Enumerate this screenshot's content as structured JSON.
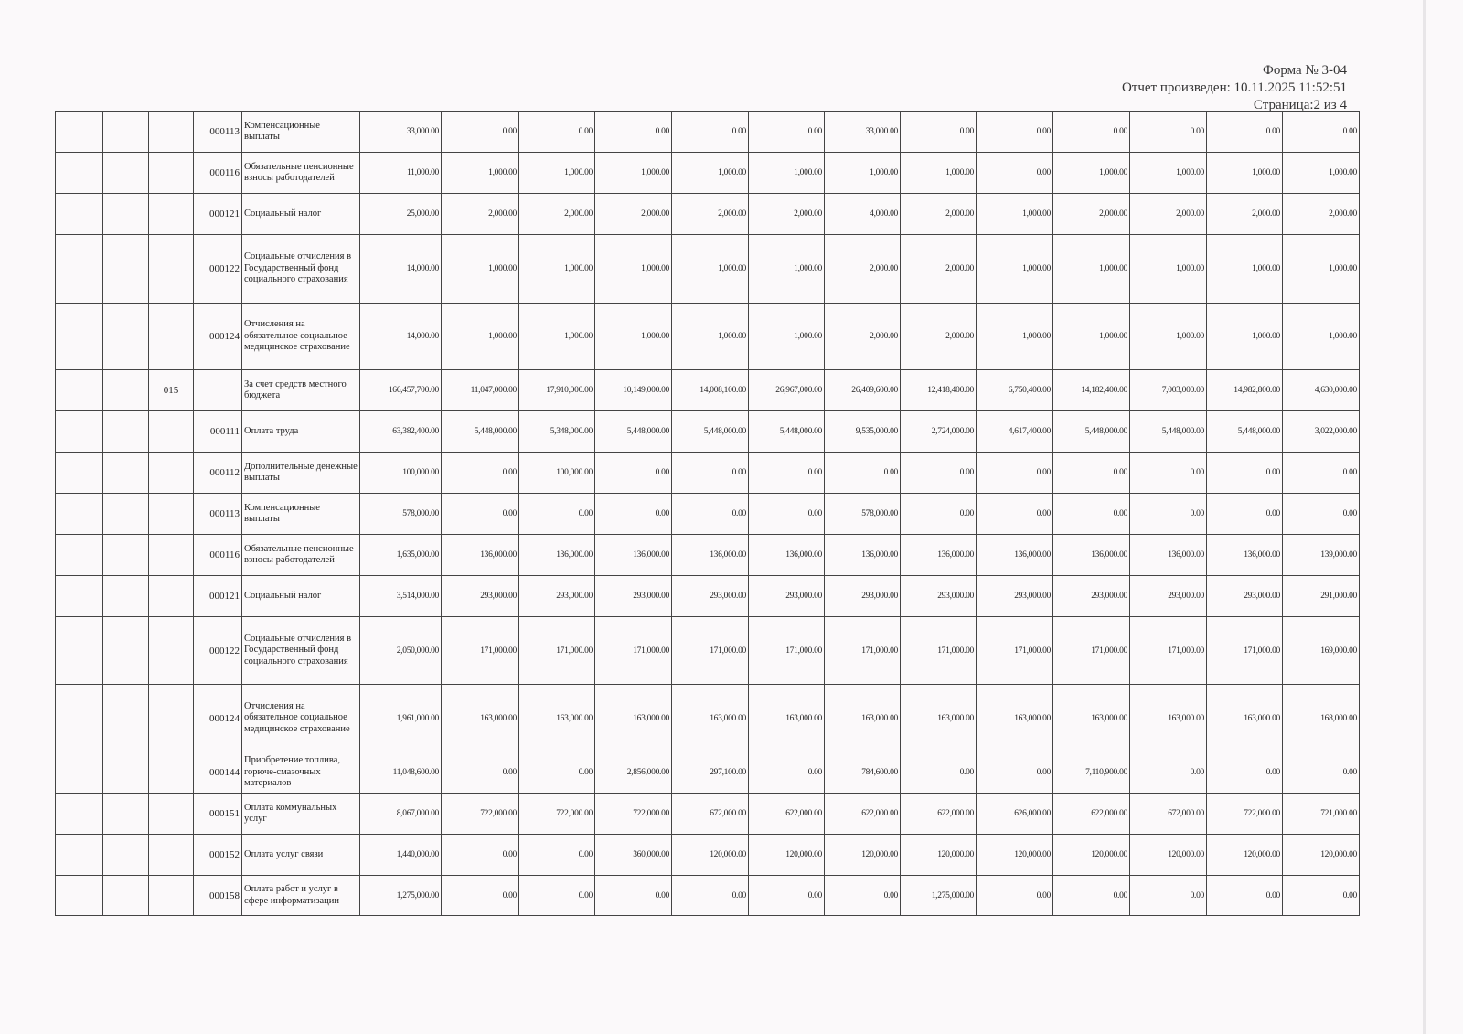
{
  "header": {
    "form": "Форма № 3-04",
    "report_date": "Отчет произведен: 10.11.2025 11:52:51",
    "page": "Страница:2 из 4"
  },
  "rows": [
    {
      "sub": "",
      "code": "000113",
      "name": "Компенсационные выплаты",
      "values": [
        "33,000.00",
        "0.00",
        "0.00",
        "0.00",
        "0.00",
        "0.00",
        "33,000.00",
        "0.00",
        "0.00",
        "0.00",
        "0.00",
        "0.00",
        "0.00"
      ]
    },
    {
      "sub": "",
      "code": "000116",
      "name": "Обязательные пенсионные взносы работодателей",
      "values": [
        "11,000.00",
        "1,000.00",
        "1,000.00",
        "1,000.00",
        "1,000.00",
        "1,000.00",
        "1,000.00",
        "1,000.00",
        "0.00",
        "1,000.00",
        "1,000.00",
        "1,000.00",
        "1,000.00"
      ]
    },
    {
      "sub": "",
      "code": "000121",
      "name": "Социальный налог",
      "values": [
        "25,000.00",
        "2,000.00",
        "2,000.00",
        "2,000.00",
        "2,000.00",
        "2,000.00",
        "4,000.00",
        "2,000.00",
        "1,000.00",
        "2,000.00",
        "2,000.00",
        "2,000.00",
        "2,000.00"
      ]
    },
    {
      "sub": "",
      "code": "000122",
      "name": "Социальные отчисления в Государственный фонд социального страхования",
      "values": [
        "14,000.00",
        "1,000.00",
        "1,000.00",
        "1,000.00",
        "1,000.00",
        "1,000.00",
        "2,000.00",
        "2,000.00",
        "1,000.00",
        "1,000.00",
        "1,000.00",
        "1,000.00",
        "1,000.00"
      ]
    },
    {
      "sub": "",
      "code": "000124",
      "name": "Отчисления на обязательное социальное медицинское страхование",
      "values": [
        "14,000.00",
        "1,000.00",
        "1,000.00",
        "1,000.00",
        "1,000.00",
        "1,000.00",
        "2,000.00",
        "2,000.00",
        "1,000.00",
        "1,000.00",
        "1,000.00",
        "1,000.00",
        "1,000.00"
      ]
    },
    {
      "sub": "015",
      "code": "",
      "name": "За счет средств местного бюджета",
      "values": [
        "166,457,700.00",
        "11,047,000.00",
        "17,910,000.00",
        "10,149,000.00",
        "14,008,100.00",
        "26,967,000.00",
        "26,409,600.00",
        "12,418,400.00",
        "6,750,400.00",
        "14,182,400.00",
        "7,003,000.00",
        "14,982,800.00",
        "4,630,000.00"
      ]
    },
    {
      "sub": "",
      "code": "000111",
      "name": "Оплата труда",
      "values": [
        "63,382,400.00",
        "5,448,000.00",
        "5,348,000.00",
        "5,448,000.00",
        "5,448,000.00",
        "5,448,000.00",
        "9,535,000.00",
        "2,724,000.00",
        "4,617,400.00",
        "5,448,000.00",
        "5,448,000.00",
        "5,448,000.00",
        "3,022,000.00"
      ]
    },
    {
      "sub": "",
      "code": "000112",
      "name": "Дополнительные денежные выплаты",
      "values": [
        "100,000.00",
        "0.00",
        "100,000.00",
        "0.00",
        "0.00",
        "0.00",
        "0.00",
        "0.00",
        "0.00",
        "0.00",
        "0.00",
        "0.00",
        "0.00"
      ]
    },
    {
      "sub": "",
      "code": "000113",
      "name": "Компенсационные выплаты",
      "values": [
        "578,000.00",
        "0.00",
        "0.00",
        "0.00",
        "0.00",
        "0.00",
        "578,000.00",
        "0.00",
        "0.00",
        "0.00",
        "0.00",
        "0.00",
        "0.00"
      ]
    },
    {
      "sub": "",
      "code": "000116",
      "name": "Обязательные пенсионные взносы работодателей",
      "values": [
        "1,635,000.00",
        "136,000.00",
        "136,000.00",
        "136,000.00",
        "136,000.00",
        "136,000.00",
        "136,000.00",
        "136,000.00",
        "136,000.00",
        "136,000.00",
        "136,000.00",
        "136,000.00",
        "139,000.00"
      ]
    },
    {
      "sub": "",
      "code": "000121",
      "name": "Социальный налог",
      "values": [
        "3,514,000.00",
        "293,000.00",
        "293,000.00",
        "293,000.00",
        "293,000.00",
        "293,000.00",
        "293,000.00",
        "293,000.00",
        "293,000.00",
        "293,000.00",
        "293,000.00",
        "293,000.00",
        "291,000.00"
      ]
    },
    {
      "sub": "",
      "code": "000122",
      "name": "Социальные отчисления в Государственный фонд социального страхования",
      "values": [
        "2,050,000.00",
        "171,000.00",
        "171,000.00",
        "171,000.00",
        "171,000.00",
        "171,000.00",
        "171,000.00",
        "171,000.00",
        "171,000.00",
        "171,000.00",
        "171,000.00",
        "171,000.00",
        "169,000.00"
      ]
    },
    {
      "sub": "",
      "code": "000124",
      "name": "Отчисления на обязательное социальное медицинское страхование",
      "values": [
        "1,961,000.00",
        "163,000.00",
        "163,000.00",
        "163,000.00",
        "163,000.00",
        "163,000.00",
        "163,000.00",
        "163,000.00",
        "163,000.00",
        "163,000.00",
        "163,000.00",
        "163,000.00",
        "168,000.00"
      ]
    },
    {
      "sub": "",
      "code": "000144",
      "name": "Приобретение топлива, горюче-смазочных материалов",
      "values": [
        "11,048,600.00",
        "0.00",
        "0.00",
        "2,856,000.00",
        "297,100.00",
        "0.00",
        "784,600.00",
        "0.00",
        "0.00",
        "7,110,900.00",
        "0.00",
        "0.00",
        "0.00"
      ]
    },
    {
      "sub": "",
      "code": "000151",
      "name": "Оплата коммунальных услуг",
      "values": [
        "8,067,000.00",
        "722,000.00",
        "722,000.00",
        "722,000.00",
        "672,000.00",
        "622,000.00",
        "622,000.00",
        "622,000.00",
        "626,000.00",
        "622,000.00",
        "672,000.00",
        "722,000.00",
        "721,000.00"
      ]
    },
    {
      "sub": "",
      "code": "000152",
      "name": "Оплата услуг связи",
      "values": [
        "1,440,000.00",
        "0.00",
        "0.00",
        "360,000.00",
        "120,000.00",
        "120,000.00",
        "120,000.00",
        "120,000.00",
        "120,000.00",
        "120,000.00",
        "120,000.00",
        "120,000.00",
        "120,000.00"
      ]
    },
    {
      "sub": "",
      "code": "000158",
      "name": "Оплата работ и услуг в сфере информатизации",
      "values": [
        "1,275,000.00",
        "0.00",
        "0.00",
        "0.00",
        "0.00",
        "0.00",
        "0.00",
        "1,275,000.00",
        "0.00",
        "0.00",
        "0.00",
        "0.00",
        "0.00"
      ]
    }
  ]
}
